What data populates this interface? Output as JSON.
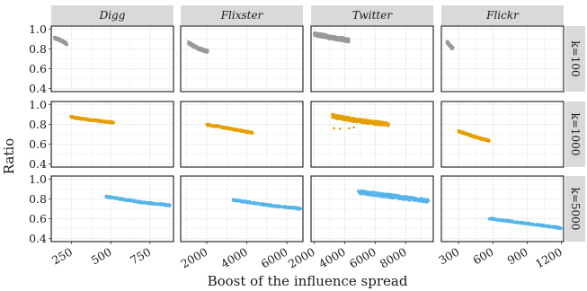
{
  "chart_data": {
    "type": "scatter",
    "xlabel": "Boost of the influence spread",
    "ylabel": "Ratio",
    "ylim": [
      0.4,
      1.0
    ],
    "y_ticks": [
      0.4,
      0.6,
      0.8,
      1.0
    ],
    "y_tick_labels": [
      "0.4",
      "0.6",
      "0.8",
      "1.0"
    ],
    "grid": true,
    "columns": [
      {
        "name": "Digg",
        "xlim": [
          120,
          900
        ],
        "x_ticks": [
          250,
          500,
          750
        ],
        "x_tick_labels": [
          "250",
          "500",
          "750"
        ]
      },
      {
        "name": "Flixster",
        "xlim": [
          700,
          6800
        ],
        "x_ticks": [
          2000,
          4000,
          6000
        ],
        "x_tick_labels": [
          "2000",
          "4000",
          "6000"
        ]
      },
      {
        "name": "Twitter",
        "xlim": [
          1800,
          9800
        ],
        "x_ticks": [
          2000,
          4000,
          6000,
          8000
        ],
        "x_tick_labels": [
          "2000",
          "4000",
          "6000",
          "8000"
        ]
      },
      {
        "name": "Flickr",
        "xlim": [
          150,
          1220
        ],
        "x_ticks": [
          300,
          600,
          900,
          1200
        ],
        "x_tick_labels": [
          "300",
          "600",
          "900",
          "1200"
        ]
      }
    ],
    "rows": [
      {
        "label": "k=100",
        "color": "#999999",
        "series": [
          {
            "x": [
              140,
              150,
              160,
              175,
              190,
              205,
              220
            ],
            "y": [
              0.91,
              0.905,
              0.9,
              0.89,
              0.88,
              0.865,
              0.85
            ],
            "spread": 0.025
          },
          {
            "x": [
              1100,
              1200,
              1350,
              1500,
              1650,
              1800,
              1950,
              2050
            ],
            "y": [
              0.86,
              0.845,
              0.83,
              0.815,
              0.8,
              0.79,
              0.78,
              0.775
            ],
            "spread": 0.03
          },
          {
            "x": [
              2000,
              2300,
              2600,
              2900,
              3200,
              3500,
              3800,
              4100,
              4300
            ],
            "y": [
              0.95,
              0.94,
              0.935,
              0.92,
              0.915,
              0.905,
              0.9,
              0.89,
              0.885
            ],
            "spread": 0.04
          },
          {
            "x": [
              200,
              210,
              220,
              230,
              240,
              250
            ],
            "y": [
              0.87,
              0.855,
              0.84,
              0.83,
              0.815,
              0.805
            ],
            "spread": 0.025
          }
        ]
      },
      {
        "label": "k=1000",
        "color": "#E69F00",
        "series": [
          {
            "x": [
              245,
              280,
              320,
              360,
              400,
              440,
              480,
              520
            ],
            "y": [
              0.875,
              0.865,
              0.855,
              0.845,
              0.84,
              0.83,
              0.825,
              0.815
            ],
            "spread": 0.02
          },
          {
            "x": [
              2000,
              2400,
              2800,
              3200,
              3600,
              4000,
              4300
            ],
            "y": [
              0.795,
              0.785,
              0.77,
              0.755,
              0.74,
              0.725,
              0.715
            ],
            "spread": 0.02
          },
          {
            "x": [
              3200,
              3600,
              4000,
              4400,
              4800,
              5200,
              5600,
              6000,
              6400,
              6900
            ],
            "y": [
              0.885,
              0.87,
              0.86,
              0.85,
              0.84,
              0.83,
              0.825,
              0.815,
              0.81,
              0.8
            ],
            "spread": 0.04,
            "outliers": [
              {
                "x": 3300,
                "y": 0.76
              },
              {
                "x": 3700,
                "y": 0.755
              },
              {
                "x": 4300,
                "y": 0.76
              },
              {
                "x": 4600,
                "y": 0.77
              }
            ]
          },
          {
            "x": [
              300,
              340,
              380,
              420,
              460,
              500,
              540,
              570
            ],
            "y": [
              0.73,
              0.715,
              0.7,
              0.685,
              0.67,
              0.655,
              0.645,
              0.635
            ],
            "spread": 0.02
          }
        ]
      },
      {
        "label": "k=5000",
        "color": "#56B4E9",
        "series": [
          {
            "x": [
              470,
              520,
              580,
              640,
              700,
              760,
              820,
              880
            ],
            "y": [
              0.825,
              0.81,
              0.795,
              0.78,
              0.765,
              0.755,
              0.745,
              0.735
            ],
            "spread": 0.02
          },
          {
            "x": [
              3300,
              3800,
              4300,
              4800,
              5300,
              5800,
              6300,
              6700
            ],
            "y": [
              0.79,
              0.775,
              0.76,
              0.745,
              0.73,
              0.72,
              0.71,
              0.7
            ],
            "spread": 0.02
          },
          {
            "x": [
              4900,
              5400,
              5900,
              6400,
              6900,
              7400,
              7900,
              8400,
              8900,
              9500
            ],
            "y": [
              0.87,
              0.86,
              0.85,
              0.84,
              0.83,
              0.82,
              0.81,
              0.8,
              0.79,
              0.78
            ],
            "spread": 0.04
          },
          {
            "x": [
              570,
              650,
              750,
              850,
              950,
              1050,
              1150,
              1200
            ],
            "y": [
              0.605,
              0.59,
              0.575,
              0.56,
              0.545,
              0.53,
              0.515,
              0.505
            ],
            "spread": 0.02
          }
        ]
      }
    ]
  }
}
